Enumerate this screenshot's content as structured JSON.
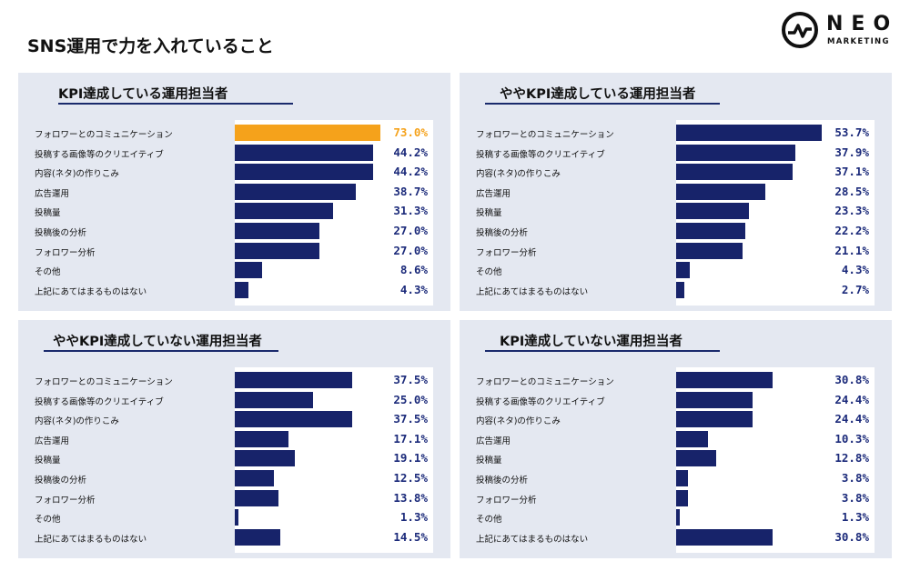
{
  "page_title": "SNS運用で力を入れていること",
  "logo": {
    "name": "NEO",
    "sub": "MARKETING"
  },
  "colors": {
    "bar": "#17236a",
    "highlight": "#f5a21b",
    "panel_bg": "#e4e8f1",
    "value_text": "#1b2a7a"
  },
  "chart_data": [
    {
      "type": "bar",
      "title": "KPI達成している運用担当者",
      "categories": [
        "フォロワーとのコミュニケーション",
        "投稿する画像等のクリエイティブ",
        "内容(ネタ)の作りこみ",
        "広告運用",
        "投稿量",
        "投稿後の分析",
        "フォロワー分析",
        "その他",
        "上記にあてはまるものはない"
      ],
      "values": [
        73.0,
        44.2,
        44.2,
        38.7,
        31.3,
        27.0,
        27.0,
        8.6,
        4.3
      ],
      "labels": [
        "73.0%",
        "44.2%",
        "44.2%",
        "38.7%",
        "31.3%",
        "27.0%",
        "27.0%",
        "8.6%",
        "4.3%"
      ],
      "highlight_index": 0
    },
    {
      "type": "bar",
      "title": "ややKPI達成している運用担当者",
      "categories": [
        "フォロワーとのコミュニケーション",
        "投稿する画像等のクリエイティブ",
        "内容(ネタ)の作りこみ",
        "広告運用",
        "投稿量",
        "投稿後の分析",
        "フォロワー分析",
        "その他",
        "上記にあてはまるものはない"
      ],
      "values": [
        53.7,
        37.9,
        37.1,
        28.5,
        23.3,
        22.2,
        21.1,
        4.3,
        2.7
      ],
      "labels": [
        "53.7%",
        "37.9%",
        "37.1%",
        "28.5%",
        "23.3%",
        "22.2%",
        "21.1%",
        "4.3%",
        "2.7%"
      ],
      "highlight_index": -1
    },
    {
      "type": "bar",
      "title": "ややKPI達成していない運用担当者",
      "categories": [
        "フォロワーとのコミュニケーション",
        "投稿する画像等のクリエイティブ",
        "内容(ネタ)の作りこみ",
        "広告運用",
        "投稿量",
        "投稿後の分析",
        "フォロワー分析",
        "その他",
        "上記にあてはまるものはない"
      ],
      "values": [
        37.5,
        25.0,
        37.5,
        17.1,
        19.1,
        12.5,
        13.8,
        1.3,
        14.5
      ],
      "labels": [
        "37.5%",
        "25.0%",
        "37.5%",
        "17.1%",
        "19.1%",
        "12.5%",
        "13.8%",
        "1.3%",
        "14.5%"
      ],
      "highlight_index": -1
    },
    {
      "type": "bar",
      "title": "KPI達成していない運用担当者",
      "categories": [
        "フォロワーとのコミュニケーション",
        "投稿する画像等のクリエイティブ",
        "内容(ネタ)の作りこみ",
        "広告運用",
        "投稿量",
        "投稿後の分析",
        "フォロワー分析",
        "その他",
        "上記にあてはまるものはない"
      ],
      "values": [
        30.8,
        24.4,
        24.4,
        10.3,
        12.8,
        3.8,
        3.8,
        1.3,
        30.8
      ],
      "labels": [
        "30.8%",
        "24.4%",
        "24.4%",
        "10.3%",
        "12.8%",
        "3.8%",
        "3.8%",
        "1.3%",
        "30.8%"
      ],
      "highlight_index": -1
    }
  ]
}
